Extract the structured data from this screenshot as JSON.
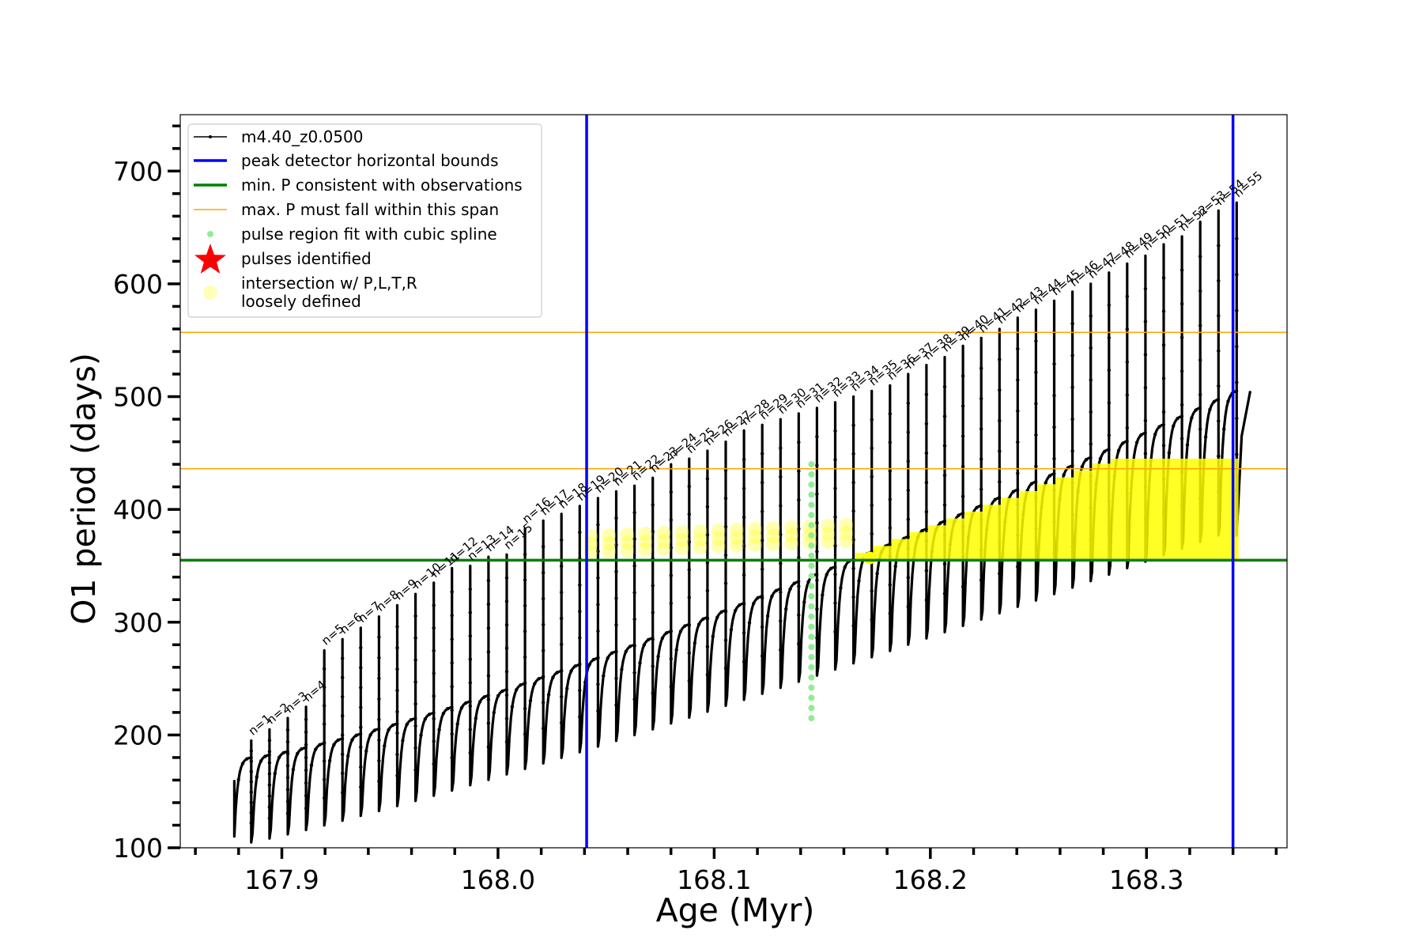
{
  "chart_data": {
    "type": "line",
    "xlabel": "Age (Myr)",
    "ylabel": "O1 period (days)",
    "xlim": [
      167.853,
      168.365
    ],
    "ylim": [
      100,
      750
    ],
    "x_ticks": [
      167.9,
      168.0,
      168.1,
      168.2,
      168.3
    ],
    "x_tick_labels": [
      "167.9",
      "168.0",
      "168.1",
      "168.2",
      "168.3"
    ],
    "y_ticks": [
      100,
      200,
      300,
      400,
      500,
      600,
      700
    ],
    "y_tick_labels": [
      "100",
      "200",
      "300",
      "400",
      "500",
      "600",
      "700"
    ],
    "grid": false,
    "legend_position": "top-left",
    "legend": [
      {
        "label": "m4.40_z0.0500",
        "style": "line-dot",
        "color": "#000000"
      },
      {
        "label": "peak detector horizontal bounds",
        "style": "line",
        "color": "#0000ff"
      },
      {
        "label": "min. P consistent with observations",
        "style": "line",
        "color": "#008000"
      },
      {
        "label": "max. P must fall within this span",
        "style": "thin-line",
        "color": "#ffa500"
      },
      {
        "label": "pulse region fit with cubic spline",
        "style": "dot",
        "color": "#90ee90"
      },
      {
        "label": "pulses identified",
        "style": "star",
        "color": "#ff0000"
      },
      {
        "label": "intersection w/ P,L,T,R",
        "label2": "loosely defined",
        "style": "circle",
        "color": "#ffff99"
      }
    ],
    "series": [
      {
        "name": "m4.40_z0.0500",
        "color": "#000000",
        "pulse_start_x": 167.878,
        "start_period": 160,
        "floor_start": 110,
        "floor_end": 385,
        "plateau_start": 180,
        "plateau_end": 505,
        "final_x": 168.344,
        "final_period": 505,
        "n_pulses": 55,
        "peak_periods": [
          195,
          205,
          215,
          225,
          275,
          285,
          295,
          305,
          315,
          325,
          335,
          348,
          350,
          358,
          360,
          383,
          390,
          396,
          403,
          410,
          416,
          421,
          428,
          440,
          445,
          452,
          460,
          470,
          475,
          480,
          485,
          490,
          495,
          500,
          505,
          510,
          520,
          528,
          535,
          545,
          552,
          560,
          570,
          577,
          585,
          593,
          600,
          610,
          618,
          625,
          635,
          642,
          655,
          665,
          672
        ]
      }
    ],
    "vertical_lines": {
      "color": "#0000ff",
      "x": [
        168.041,
        168.34
      ]
    },
    "min_period_line": {
      "color": "#008000",
      "y": 355
    },
    "max_period_span": {
      "color": "#ffa500",
      "y": [
        436,
        557
      ]
    },
    "spline_region": {
      "color": "#90ee90",
      "x": 168.145,
      "y_range": [
        215,
        445
      ]
    },
    "intersection_region": {
      "color": "#ffff00",
      "y_range": [
        355,
        445
      ]
    },
    "pulse_labels": [
      "n=1",
      "n=2",
      "n=3",
      "n=4",
      "n=5",
      "n=6",
      "n=7",
      "n=8",
      "n=9",
      "n=10",
      "n=11",
      "n=12",
      "n=13",
      "n=14",
      "n=15",
      "n=16",
      "n=17",
      "n=18",
      "n=19",
      "n=20",
      "n=21",
      "n=22",
      "n=23",
      "n=24",
      "n=25",
      "n=26",
      "n=27",
      "n=28",
      "n=29",
      "n=30",
      "n=31",
      "n=32",
      "n=33",
      "n=34",
      "n=35",
      "n=36",
      "n=37",
      "n=38",
      "n=39",
      "n=40",
      "n=41",
      "n=42",
      "n=43",
      "n=44",
      "n=45",
      "n=46",
      "n=47",
      "n=48",
      "n=49",
      "n=50",
      "n=51",
      "n=52",
      "n=53",
      "n=54",
      "n=55"
    ]
  }
}
